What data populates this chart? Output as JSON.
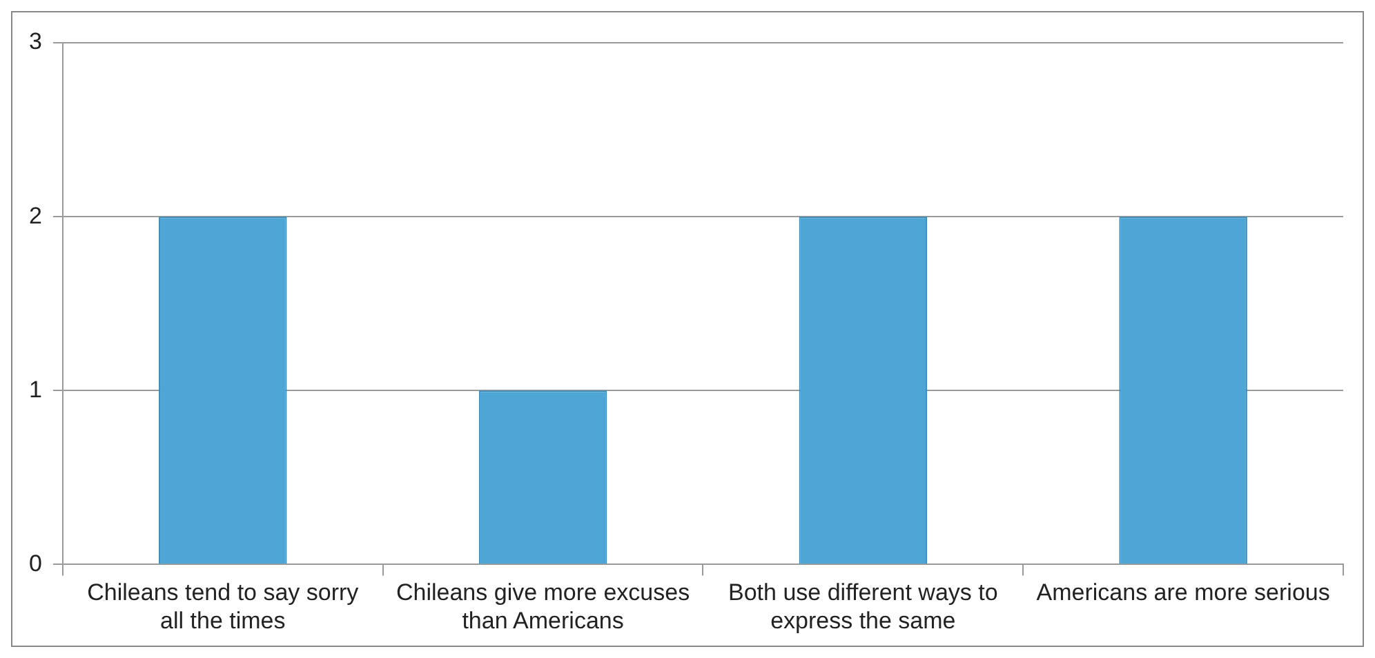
{
  "chart_data": {
    "type": "bar",
    "categories": [
      "Chileans tend to say sorry all the times",
      "Chileans give more excuses than Americans",
      "Both use different ways to express the same",
      "Americans are more serious"
    ],
    "values": [
      2,
      1,
      2,
      2
    ],
    "color": "#4ea6d6",
    "ylim": [
      0,
      3
    ],
    "yticks": [
      0,
      1,
      2,
      3
    ],
    "grid": "y"
  }
}
